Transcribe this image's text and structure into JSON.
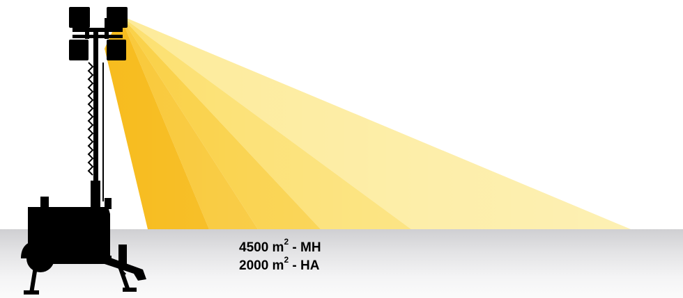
{
  "colors": {
    "beam_deep": "#F7BC1E",
    "beam_mid": "#FAD147",
    "beam_light": "#FCE070",
    "beam_pale": "#FDEB9A",
    "silhouette": "#000000",
    "ground_top": "#CFCFD2",
    "ground_bottom": "#FBFBFB"
  },
  "icons": {
    "tower": "light-tower-trailer-icon",
    "lamps": "floodlight-lamp-icon"
  },
  "coverage": {
    "mh": {
      "value": "4500 m",
      "exponent": "2",
      "suffix": " - MH"
    },
    "ha": {
      "value": "2000 m",
      "exponent": "2",
      "suffix": " - HA"
    }
  }
}
